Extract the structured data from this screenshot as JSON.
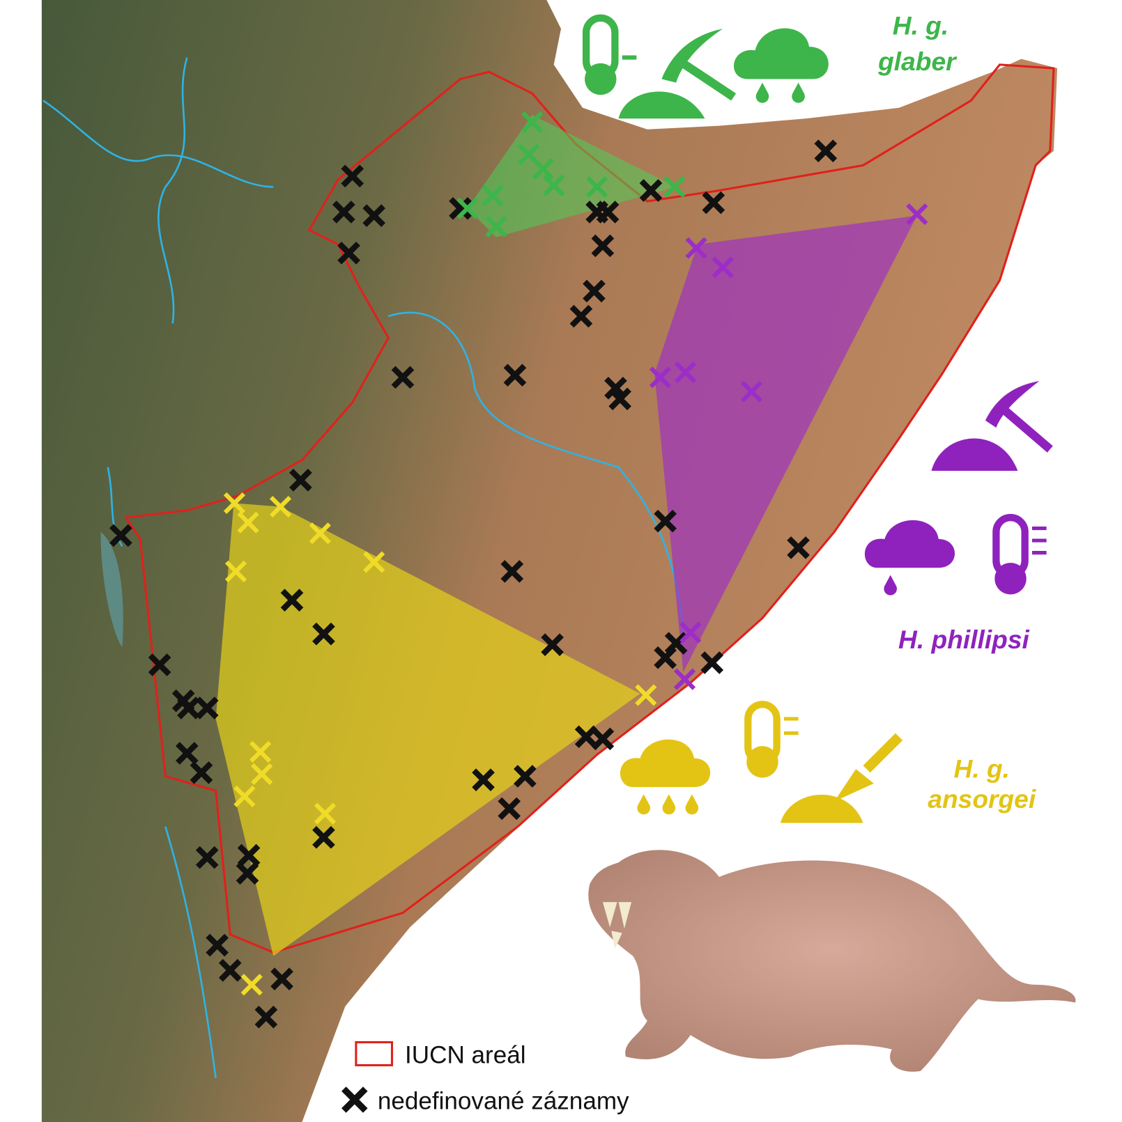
{
  "species": [
    {
      "lines": [
        "H. g.",
        "glaber"
      ]
    },
    {
      "lines": [
        "H. phillipsi"
      ]
    },
    {
      "lines": [
        "H. g.",
        "ansorgei"
      ]
    }
  ],
  "legend": [
    {
      "label": "IUCN areál"
    },
    {
      "label": "nedefinované záznamy"
    }
  ]
}
